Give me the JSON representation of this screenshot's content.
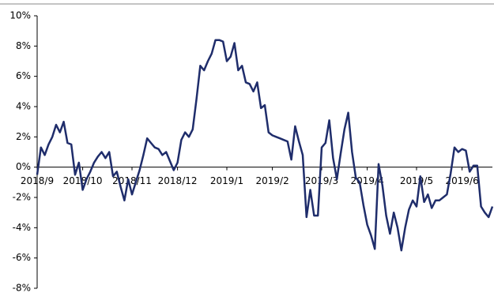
{
  "chart_data": {
    "type": "line",
    "categories": [
      "2018/9",
      null,
      null,
      null,
      null,
      null,
      null,
      null,
      null,
      null,
      null,
      null,
      "2018/10",
      null,
      null,
      null,
      null,
      null,
      null,
      null,
      null,
      null,
      null,
      null,
      null,
      "2018/11",
      null,
      null,
      null,
      null,
      null,
      null,
      null,
      null,
      null,
      null,
      null,
      "2018/12",
      null,
      null,
      null,
      null,
      null,
      null,
      null,
      null,
      null,
      null,
      null,
      null,
      "2019/1",
      null,
      null,
      null,
      null,
      null,
      null,
      null,
      null,
      null,
      null,
      null,
      "2019/2",
      null,
      null,
      null,
      null,
      null,
      null,
      null,
      null,
      null,
      null,
      null,
      null,
      "2019/3",
      null,
      null,
      null,
      null,
      null,
      null,
      null,
      null,
      null,
      null,
      null,
      "2019/4",
      null,
      null,
      null,
      null,
      null,
      null,
      null,
      null,
      null,
      null,
      null,
      null,
      "2019/5",
      null,
      null,
      null,
      null,
      null,
      null,
      null,
      null,
      null,
      null,
      null,
      "2019/6",
      null,
      null,
      null,
      null,
      null,
      null,
      null,
      null
    ],
    "values": [
      -0.5,
      1.3,
      0.8,
      1.5,
      2.0,
      2.8,
      2.3,
      3.0,
      1.6,
      1.5,
      -0.5,
      0.3,
      -1.5,
      -0.8,
      -0.3,
      0.3,
      0.7,
      1.0,
      0.6,
      1.0,
      -0.6,
      -0.3,
      -1.3,
      -2.2,
      -0.8,
      -1.8,
      -1.0,
      -0.2,
      0.8,
      1.9,
      1.6,
      1.3,
      1.2,
      0.8,
      1.0,
      0.4,
      -0.2,
      0.3,
      1.8,
      2.3,
      2.0,
      2.5,
      4.5,
      6.7,
      6.4,
      7.0,
      7.5,
      8.4,
      8.4,
      8.3,
      7.0,
      7.3,
      8.2,
      6.4,
      6.7,
      5.6,
      5.5,
      5.0,
      5.6,
      3.9,
      4.1,
      2.3,
      2.1,
      2.0,
      1.9,
      1.8,
      1.7,
      0.5,
      2.7,
      1.7,
      0.8,
      -3.3,
      -1.5,
      -3.2,
      -3.2,
      1.3,
      1.6,
      3.1,
      0.6,
      -0.8,
      0.9,
      2.5,
      3.6,
      1.0,
      -0.7,
      -1.0,
      -2.5,
      -3.8,
      -4.5,
      -5.4,
      0.2,
      -1.2,
      -3.2,
      -4.4,
      -3.0,
      -4.0,
      -5.5,
      -4.0,
      -2.8,
      -2.2,
      -2.6,
      -0.6,
      -2.3,
      -1.8,
      -2.7,
      -2.2,
      -2.2,
      -2.0,
      -1.8,
      -0.4,
      1.3,
      1.0,
      1.2,
      1.1,
      -0.3,
      0.1,
      0.1,
      -2.6,
      -3.0,
      -3.3,
      -2.6
    ],
    "color": "#1f2d6b",
    "ylim": [
      -8,
      10
    ],
    "yticks": [
      {
        "value": -8,
        "label": "-8%"
      },
      {
        "value": -6,
        "label": "-6%"
      },
      {
        "value": -4,
        "label": "-4%"
      },
      {
        "value": -2,
        "label": "-2%"
      },
      {
        "value": 0,
        "label": "0%"
      },
      {
        "value": 2,
        "label": "2%"
      },
      {
        "value": 4,
        "label": "4%"
      },
      {
        "value": 6,
        "label": "6%"
      },
      {
        "value": 8,
        "label": "8%"
      },
      {
        "value": 10,
        "label": "10%"
      }
    ]
  }
}
